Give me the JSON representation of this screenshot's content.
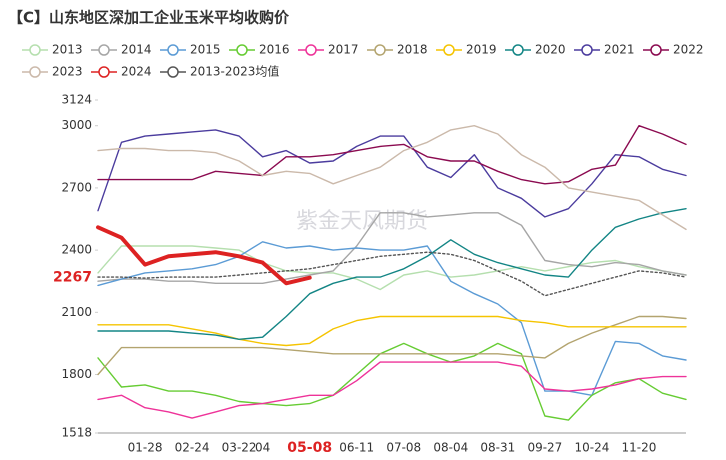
{
  "chart_data": {
    "type": "line",
    "title": "【C】山东地区深加工企业玉米平均收购价",
    "watermark": "紫金天风期货",
    "categories": [
      null,
      null,
      "01-28",
      null,
      "02-24",
      null,
      "03-22",
      "04",
      null,
      "05-08",
      null,
      "06-11",
      null,
      "07-08",
      null,
      "08-04",
      null,
      "08-31",
      null,
      "09-27",
      null,
      "10-24",
      null,
      "11-20",
      null,
      null
    ],
    "ylim": [
      1518,
      3124
    ],
    "yticks": [
      1518,
      1800,
      2100,
      2400,
      2700,
      3000,
      3124
    ],
    "grid": false,
    "legend": "top",
    "series": [
      {
        "name": "2013",
        "color": "#b5dfae",
        "values": [
          2290,
          2420,
          2420,
          2420,
          2420,
          2410,
          2400,
          2340,
          2300,
          2290,
          2290,
          2260,
          2210,
          2280,
          2300,
          2270,
          2280,
          2300,
          2320,
          2300,
          2320,
          2340,
          2350,
          2320,
          2300,
          2280
        ]
      },
      {
        "name": "2014",
        "color": "#a6a6a6",
        "values": [
          2250,
          2260,
          2260,
          2250,
          2250,
          2240,
          2240,
          2240,
          2260,
          2280,
          2300,
          2420,
          2580,
          2580,
          2560,
          2570,
          2580,
          2580,
          2520,
          2350,
          2330,
          2320,
          2340,
          2330,
          2300,
          2280
        ]
      },
      {
        "name": "2015",
        "color": "#5b9bd5",
        "values": [
          2230,
          2260,
          2290,
          2300,
          2310,
          2330,
          2370,
          2440,
          2410,
          2420,
          2400,
          2410,
          2400,
          2400,
          2420,
          2250,
          2190,
          2140,
          2050,
          1720,
          1720,
          1700,
          1960,
          1950,
          1890,
          1870
        ]
      },
      {
        "name": "2016",
        "color": "#66cc33",
        "values": [
          1880,
          1740,
          1750,
          1720,
          1720,
          1700,
          1670,
          1660,
          1650,
          1660,
          1700,
          1800,
          1900,
          1950,
          1900,
          1860,
          1890,
          1950,
          1900,
          1600,
          1580,
          1700,
          1760,
          1780,
          1710,
          1680
        ]
      },
      {
        "name": "2017",
        "color": "#ee3399",
        "values": [
          1680,
          1700,
          1640,
          1620,
          1590,
          1620,
          1650,
          1660,
          1680,
          1700,
          1700,
          1770,
          1860,
          1860,
          1860,
          1860,
          1860,
          1860,
          1840,
          1730,
          1720,
          1730,
          1750,
          1780,
          1790,
          1790
        ]
      },
      {
        "name": "2018",
        "color": "#b3a46f",
        "values": [
          1800,
          1930,
          1930,
          1930,
          1930,
          1930,
          1930,
          1930,
          1920,
          1910,
          1900,
          1900,
          1900,
          1900,
          1900,
          1900,
          1900,
          1900,
          1890,
          1880,
          1950,
          2000,
          2040,
          2080,
          2080,
          2070
        ]
      },
      {
        "name": "2019",
        "color": "#f5c400",
        "values": [
          2040,
          2040,
          2040,
          2040,
          2020,
          2000,
          1970,
          1950,
          1940,
          1950,
          2020,
          2060,
          2080,
          2080,
          2080,
          2080,
          2080,
          2080,
          2060,
          2050,
          2030,
          2030,
          2030,
          2030,
          2030,
          2030
        ]
      },
      {
        "name": "2020",
        "color": "#138585",
        "values": [
          2010,
          2010,
          2010,
          2010,
          2000,
          1990,
          1970,
          1980,
          2080,
          2190,
          2240,
          2270,
          2270,
          2310,
          2370,
          2450,
          2380,
          2340,
          2310,
          2280,
          2270,
          2400,
          2510,
          2550,
          2580,
          2600
        ]
      },
      {
        "name": "2021",
        "color": "#4b3c9e",
        "values": [
          2590,
          2920,
          2950,
          2960,
          2970,
          2980,
          2950,
          2850,
          2880,
          2820,
          2830,
          2900,
          2950,
          2950,
          2800,
          2750,
          2860,
          2700,
          2650,
          2560,
          2600,
          2720,
          2860,
          2850,
          2790,
          2760
        ]
      },
      {
        "name": "2022",
        "color": "#8b0a50",
        "values": [
          2740,
          2740,
          2740,
          2740,
          2740,
          2780,
          2770,
          2760,
          2850,
          2850,
          2860,
          2880,
          2900,
          2910,
          2850,
          2830,
          2830,
          2780,
          2740,
          2720,
          2730,
          2790,
          2810,
          3000,
          2960,
          2910
        ]
      },
      {
        "name": "2023",
        "color": "#cbb9aa",
        "values": [
          2880,
          2890,
          2890,
          2880,
          2880,
          2870,
          2830,
          2760,
          2780,
          2770,
          2720,
          2760,
          2800,
          2880,
          2920,
          2980,
          3000,
          2960,
          2860,
          2800,
          2700,
          2680,
          2660,
          2640,
          2570,
          2500
        ]
      },
      {
        "name": "2024",
        "color": "#dd2222",
        "line_width": 4,
        "values": [
          2510,
          2460,
          2330,
          2370,
          2380,
          2390,
          2370,
          2340,
          2240,
          2267,
          null,
          null,
          null,
          null,
          null,
          null,
          null,
          null,
          null,
          null,
          null,
          null,
          null,
          null,
          null,
          null
        ]
      },
      {
        "name": "2013-2023均值",
        "color": "#555555",
        "style": "dotted",
        "values": [
          2270,
          2270,
          2265,
          2270,
          2270,
          2270,
          2280,
          2290,
          2300,
          2310,
          2330,
          2350,
          2370,
          2380,
          2390,
          2380,
          2350,
          2300,
          2250,
          2180,
          2210,
          2240,
          2270,
          2300,
          2290,
          2270
        ]
      }
    ]
  }
}
